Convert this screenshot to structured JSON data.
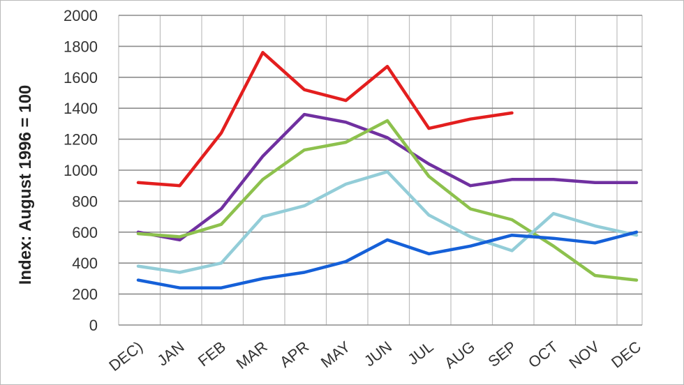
{
  "chart_data": {
    "type": "line",
    "ylabel": "Index: August  1996 = 100",
    "xlabel": "",
    "ylim": [
      0,
      2000
    ],
    "yticks": [
      0,
      200,
      400,
      600,
      800,
      1000,
      1200,
      1400,
      1600,
      1800,
      2000
    ],
    "categories": [
      "DEC)",
      "JAN",
      "FEB",
      "MAR",
      "APR",
      "MAY",
      "JUN",
      "JUL",
      "AUG",
      "SEP",
      "OCT",
      "NOV",
      "DEC"
    ],
    "grid": true,
    "legend": "none",
    "series": [
      {
        "color": "#e31e1e",
        "values": [
          920,
          900,
          1240,
          1760,
          1520,
          1450,
          1670,
          1270,
          1330,
          1370,
          null,
          null,
          null
        ]
      },
      {
        "color": "#7030a0",
        "values": [
          600,
          550,
          750,
          1090,
          1360,
          1310,
          1210,
          1040,
          900,
          940,
          940,
          920,
          920
        ]
      },
      {
        "color": "#8dc14d",
        "values": [
          590,
          570,
          650,
          940,
          1130,
          1180,
          1320,
          960,
          750,
          680,
          510,
          320,
          290
        ]
      },
      {
        "color": "#93cdd8",
        "values": [
          380,
          340,
          400,
          700,
          770,
          910,
          990,
          710,
          570,
          480,
          720,
          640,
          580
        ]
      },
      {
        "color": "#1560d8",
        "values": [
          290,
          240,
          240,
          300,
          340,
          410,
          550,
          460,
          510,
          580,
          560,
          530,
          600
        ]
      }
    ]
  }
}
